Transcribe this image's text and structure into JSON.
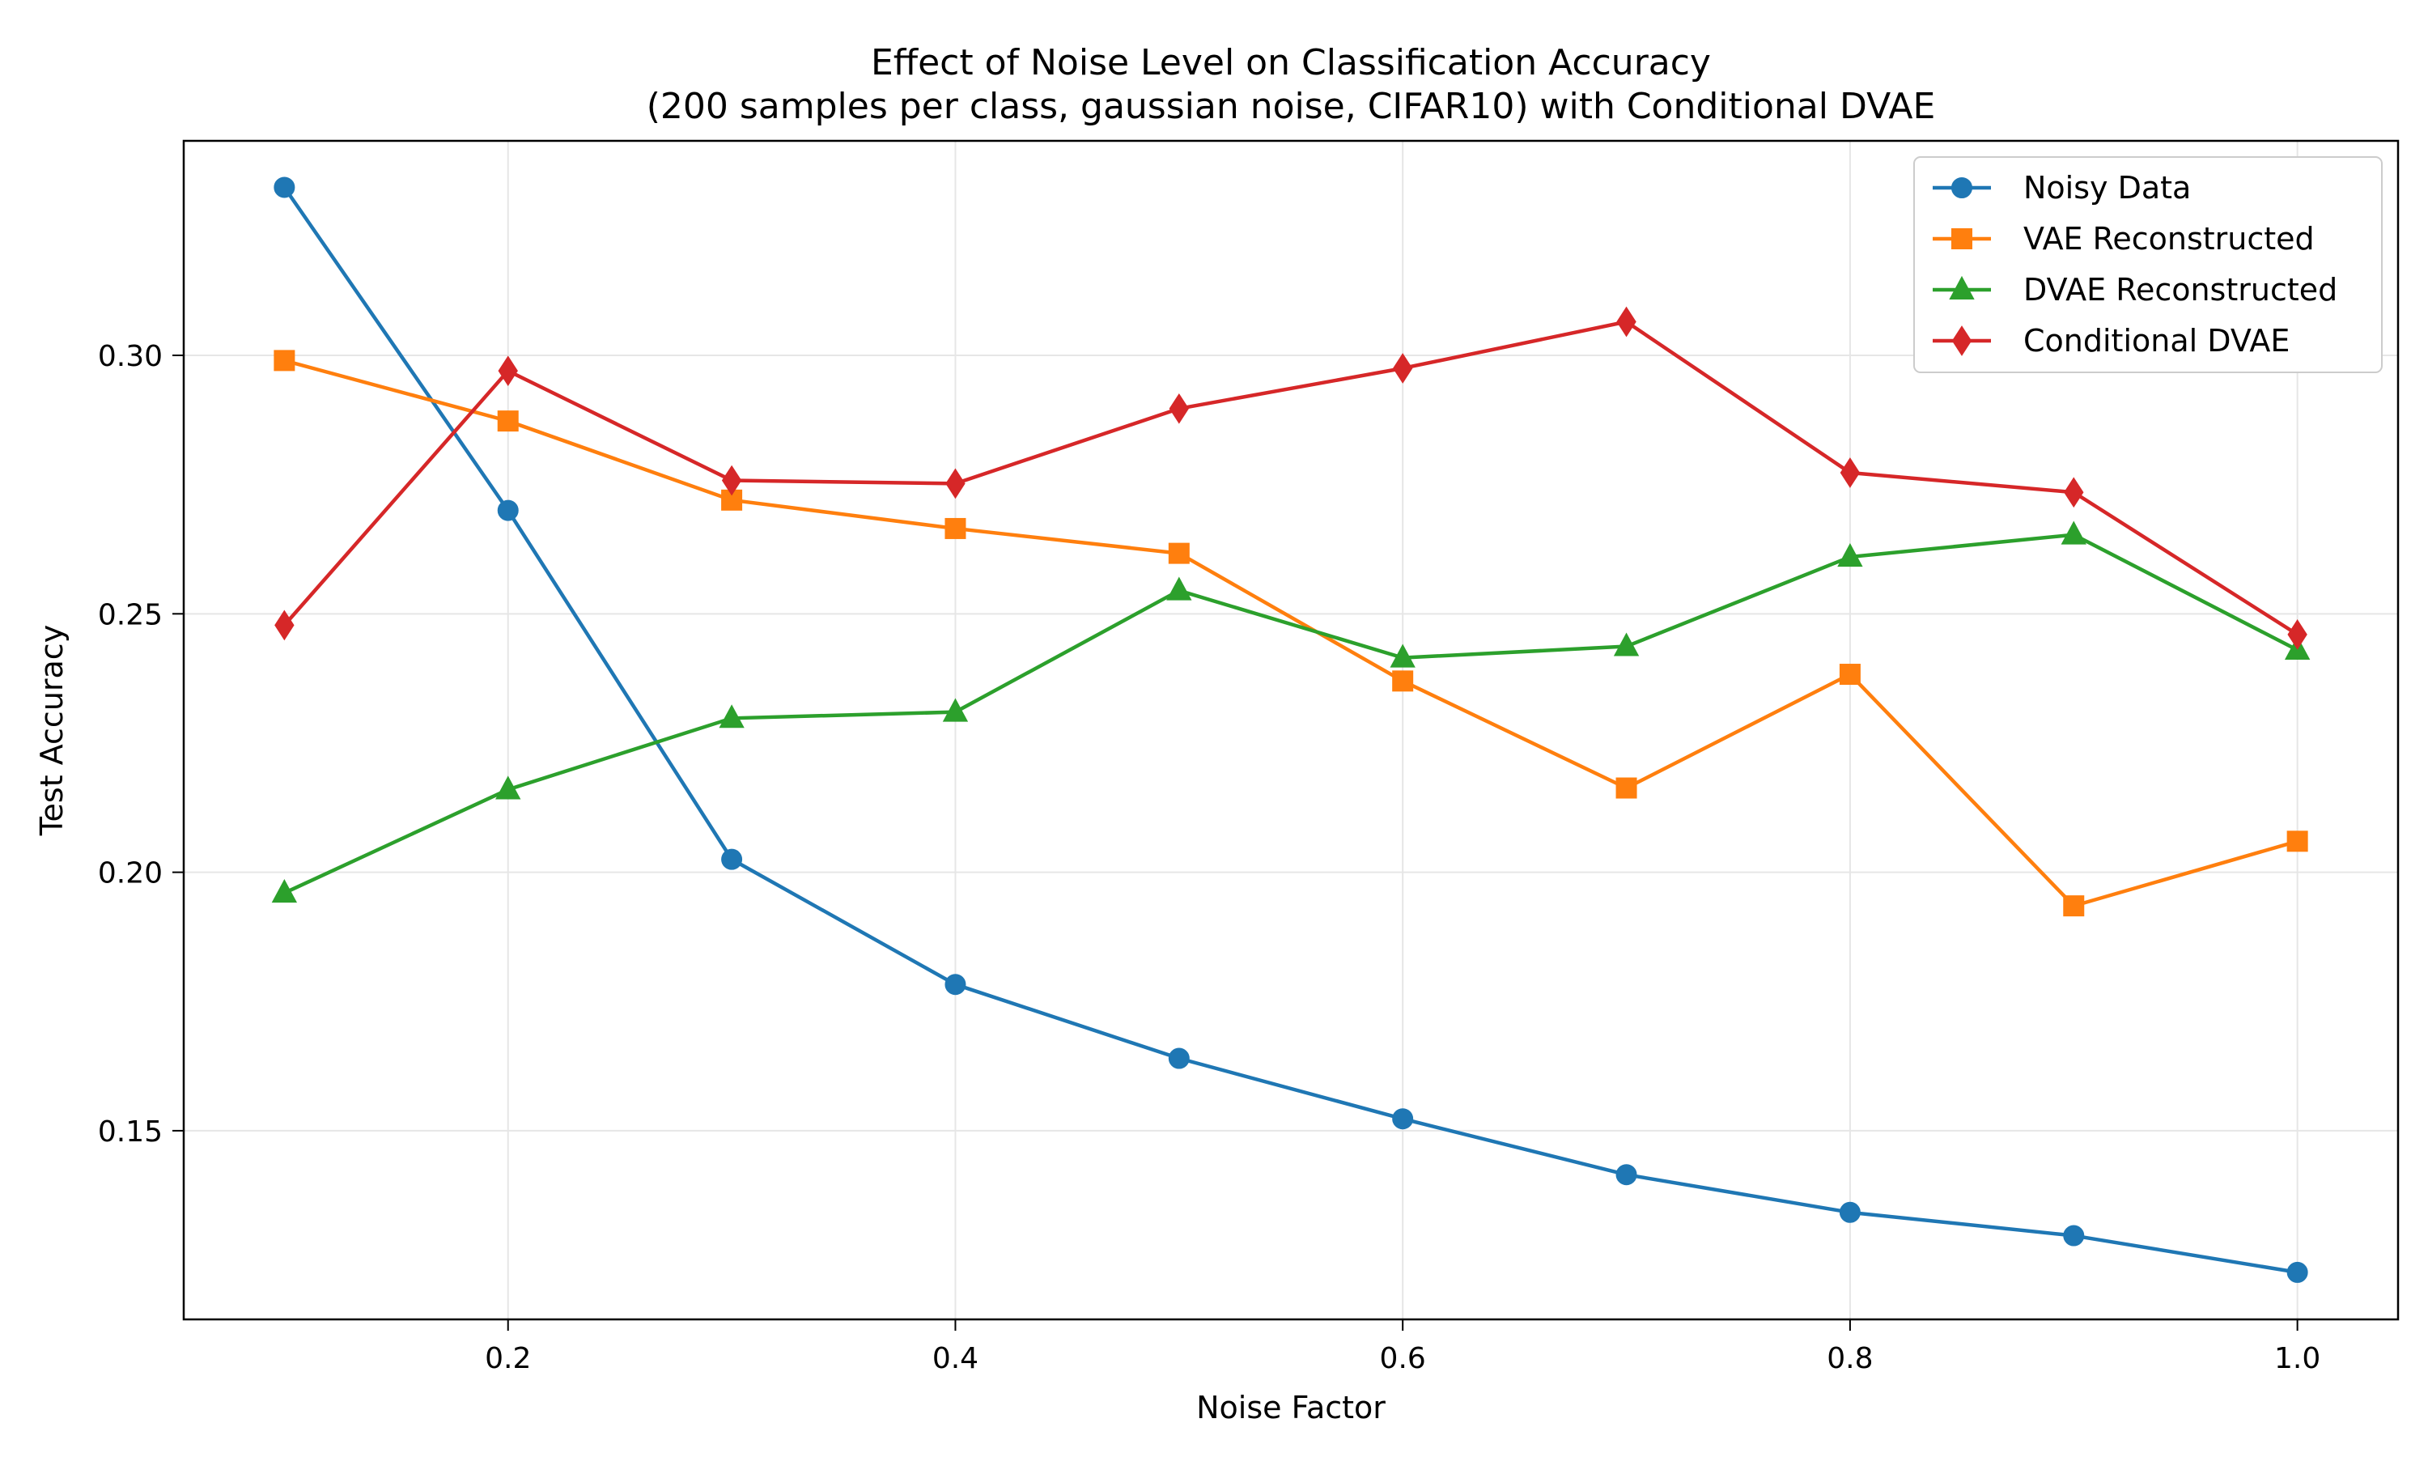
{
  "chart_data": {
    "type": "line",
    "title_line1": "Effect of Noise Level on Classification Accuracy",
    "title_line2": "(200 samples per class, gaussian noise, CIFAR10) with Conditional DVAE",
    "xlabel": "Noise Factor",
    "ylabel": "Test Accuracy",
    "x": [
      0.1,
      0.2,
      0.3,
      0.4,
      0.5,
      0.6,
      0.7,
      0.8,
      0.9,
      1.0
    ],
    "xlim": [
      0.055,
      1.045
    ],
    "ylim": [
      0.1135,
      0.3415
    ],
    "xticks": [
      0.2,
      0.4,
      0.6,
      0.8,
      1.0
    ],
    "xtick_labels": [
      "0.2",
      "0.4",
      "0.6",
      "0.8",
      "1.0"
    ],
    "yticks": [
      0.15,
      0.2,
      0.25,
      0.3
    ],
    "ytick_labels": [
      "0.15",
      "0.20",
      "0.25",
      "0.30"
    ],
    "grid": true,
    "legend_position": "top-right",
    "series": [
      {
        "name": "Noisy Data",
        "color": "#1f77b4",
        "marker": "circle",
        "values": [
          0.3325,
          0.27,
          0.2025,
          0.1783,
          0.164,
          0.1523,
          0.1415,
          0.1342,
          0.1297,
          0.1226
        ]
      },
      {
        "name": "VAE Reconstructed",
        "color": "#ff7f0e",
        "marker": "square",
        "values": [
          0.299,
          0.2873,
          0.272,
          0.2665,
          0.2617,
          0.237,
          0.2163,
          0.2383,
          0.1935,
          0.206
        ]
      },
      {
        "name": "DVAE Reconstructed",
        "color": "#2ca02c",
        "marker": "triangle",
        "values": [
          0.196,
          0.216,
          0.2298,
          0.231,
          0.2545,
          0.2415,
          0.2437,
          0.261,
          0.2653,
          0.243
        ]
      },
      {
        "name": "Conditional DVAE",
        "color": "#d62728",
        "marker": "diamond",
        "values": [
          0.2478,
          0.297,
          0.2758,
          0.2752,
          0.2897,
          0.2975,
          0.3065,
          0.2773,
          0.2735,
          0.246
        ]
      }
    ]
  }
}
